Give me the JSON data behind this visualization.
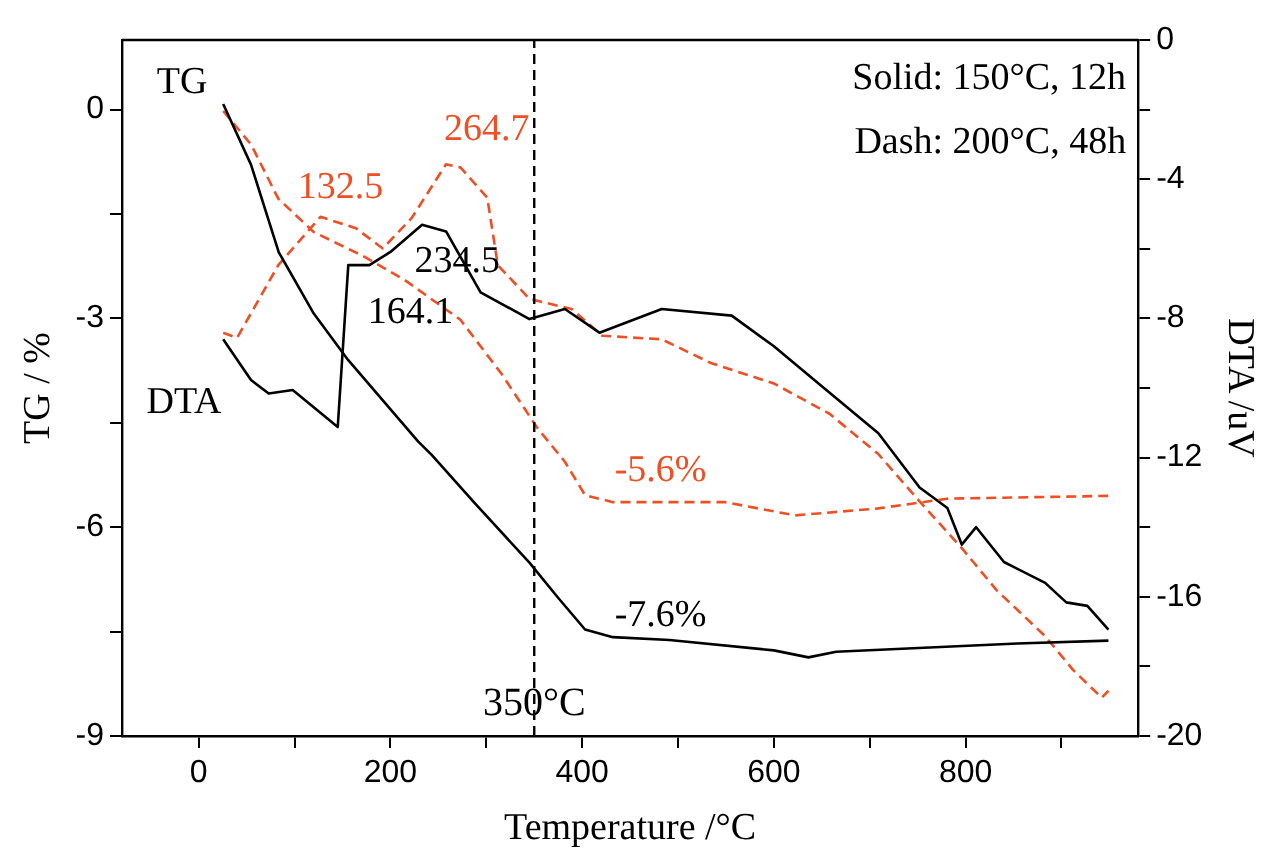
{
  "chart_data": {
    "type": "line",
    "xlabel": "Temperature /°C",
    "ylabel": "TG / %",
    "y2label": "DTA /uV",
    "xlim": [
      -80,
      980
    ],
    "xticks": [
      0,
      {
        "value": 100,
        "label": null
      },
      200,
      {
        "value": 300,
        "label": null
      },
      400,
      {
        "value": 500,
        "label": null
      },
      600,
      {
        "value": 700,
        "label": null
      },
      800,
      {
        "value": 900,
        "label": null
      }
    ],
    "ylim": [
      -9,
      1
    ],
    "yticks": [
      -9,
      {
        "value": -7.5,
        "label": null
      },
      -6,
      {
        "value": -4.5,
        "label": null
      },
      -3,
      {
        "value": -1.5,
        "label": null
      },
      0
    ],
    "y2lim": [
      -20,
      0
    ],
    "y2ticks": [
      -20,
      {
        "value": -18,
        "label": null
      },
      -16,
      {
        "value": -14,
        "label": null
      },
      -12,
      {
        "value": -10,
        "label": null
      },
      -8,
      {
        "value": -6,
        "label": null
      },
      -4,
      {
        "value": -2,
        "label": null
      },
      0
    ],
    "grid": false,
    "marker": "none",
    "series": [
      {
        "color": "#000000",
        "line_style": "solid",
        "x": [
          25.5,
          54.5,
          83.5,
          120,
          156,
          229,
          243,
          287,
          345,
          374,
          403,
          432,
          491,
          600,
          636,
          665,
          854,
          949
        ],
        "values": [
          0.08,
          -0.79,
          -2.05,
          -2.93,
          -3.6,
          -4.77,
          -4.96,
          -5.64,
          -6.51,
          -7.0,
          -7.47,
          -7.58,
          -7.62,
          -7.77,
          -7.87,
          -7.79,
          -7.67,
          -7.63
        ]
      },
      {
        "color": "#f04e23",
        "line_style": "dashed",
        "x": [
          25.5,
          54.5,
          83,
          120,
          171,
          214,
          273,
          316,
          353,
          382,
          403,
          432,
          491,
          549,
          622,
          709,
          781,
          949
        ],
        "values": [
          -0.02,
          -0.5,
          -1.28,
          -1.76,
          -2.1,
          -2.44,
          -3.02,
          -3.8,
          -4.57,
          -5.06,
          -5.54,
          -5.64,
          -5.64,
          -5.64,
          -5.83,
          -5.73,
          -5.59,
          -5.55
        ]
      },
      {
        "color": "#000000",
        "line_style": "solid",
        "axis": "y2",
        "x": [
          25.5,
          54.5,
          73,
          98,
          145,
          156,
          178,
          200,
          233,
          258,
          294,
          345,
          382,
          418,
          483,
          556,
          600,
          650,
          709,
          752,
          781,
          796,
          811,
          840,
          883,
          905,
          927,
          949
        ],
        "values": [
          -8.6,
          -9.77,
          -10.16,
          -10.06,
          -11.12,
          -6.47,
          -6.47,
          -6.09,
          -5.31,
          -5.5,
          -7.25,
          -8.02,
          -7.73,
          -8.41,
          -7.73,
          -7.92,
          -8.8,
          -9.95,
          -11.3,
          -12.86,
          -13.45,
          -14.5,
          -14.0,
          -15.0,
          -15.6,
          -16.16,
          -16.26,
          -16.94
        ]
      },
      {
        "color": "#f04e23",
        "line_style": "dashed",
        "axis": "y2",
        "x": [
          25.5,
          40,
          83,
          127,
          164,
          192,
          222,
          258,
          273,
          301,
          312,
          345,
          389,
          421,
          483,
          534,
          600,
          658,
          709,
          752,
          796,
          832,
          883,
          912,
          942,
          949
        ],
        "values": [
          -8.41,
          -8.56,
          -6.47,
          -5.08,
          -5.41,
          -5.99,
          -5.12,
          -3.57,
          -3.66,
          -4.53,
          -6.47,
          -7.44,
          -7.73,
          -8.5,
          -8.6,
          -9.28,
          -9.87,
          -10.74,
          -11.9,
          -13.26,
          -14.6,
          -15.8,
          -17.13,
          -18.1,
          -18.9,
          -18.7
        ]
      }
    ],
    "ref_lines": [
      {
        "axis": "x",
        "value": 350,
        "label": "350°C",
        "color": "#000000",
        "line_style": "dashed"
      }
    ],
    "annotations": [
      "Solid: 150°C, 12h",
      "Dash: 200°C, 48h",
      "TG",
      "DTA",
      "132.5",
      "264.7",
      "234.5",
      "164.1",
      "-5.6%",
      "-7.6%"
    ]
  }
}
